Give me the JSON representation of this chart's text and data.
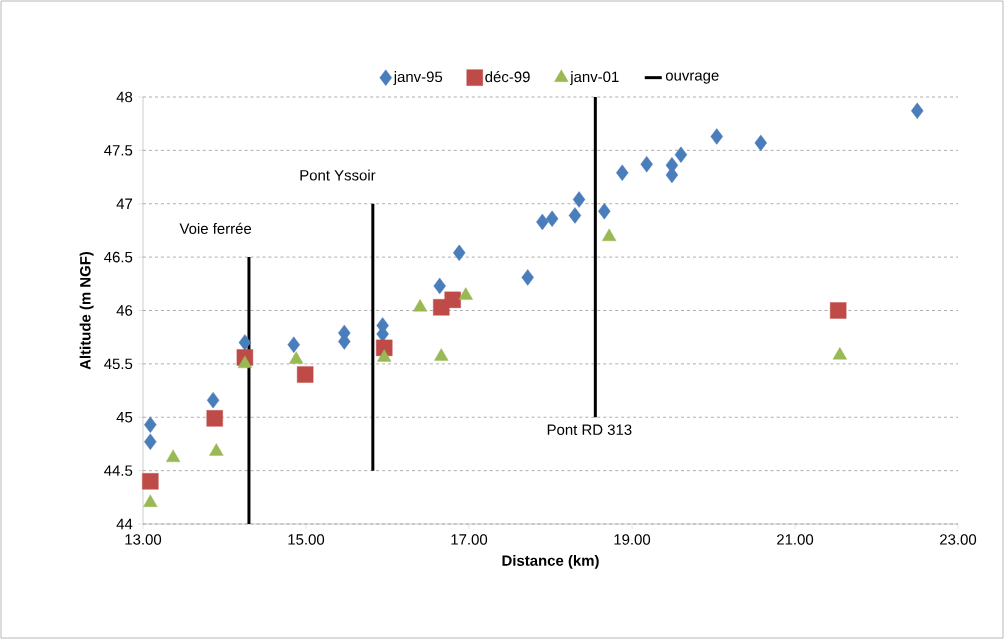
{
  "chart_data": {
    "type": "scatter",
    "xlabel": "Distance (km)",
    "ylabel": "Altitude (m NGF)",
    "xlim": [
      13,
      23
    ],
    "xticks": [
      {
        "value": 13,
        "label": "13.00"
      },
      {
        "value": 15,
        "label": "15.00"
      },
      {
        "value": 17,
        "label": "17.00"
      },
      {
        "value": 19,
        "label": "19.00"
      },
      {
        "value": 21,
        "label": "21.00"
      },
      {
        "value": 23,
        "label": "23.00"
      }
    ],
    "ylim": [
      44,
      48
    ],
    "yticks": [
      44,
      44.5,
      45,
      45.5,
      46,
      46.5,
      47,
      47.5,
      48
    ],
    "grid": "y",
    "legend": "top",
    "series": [
      {
        "name": "janv-95",
        "color": "#4a7ebb",
        "marker": "diamond",
        "x": [
          13.09,
          13.09,
          13.86,
          14.25,
          14.85,
          15.47,
          15.47,
          15.94,
          15.94,
          16.64,
          16.88,
          17.72,
          17.9,
          18.02,
          18.3,
          18.35,
          18.66,
          18.88,
          19.18,
          19.49,
          19.49,
          19.6,
          20.04,
          20.58,
          22.5
        ],
        "values": [
          44.93,
          44.77,
          45.16,
          45.7,
          45.68,
          45.79,
          45.71,
          45.86,
          45.78,
          46.23,
          46.54,
          46.31,
          46.83,
          46.86,
          46.89,
          47.04,
          46.93,
          47.29,
          47.37,
          47.27,
          47.36,
          47.46,
          47.63,
          47.57,
          47.87
        ]
      },
      {
        "name": "déc-99",
        "color": "#be4b48",
        "marker": "square",
        "x": [
          13.09,
          13.88,
          14.25,
          14.99,
          15.96,
          16.66,
          16.8,
          21.53
        ],
        "values": [
          44.4,
          44.99,
          45.56,
          45.4,
          45.65,
          46.03,
          46.1,
          46.0
        ]
      },
      {
        "name": "janv-01",
        "color": "#98b954",
        "marker": "triangle",
        "x": [
          13.09,
          13.37,
          13.9,
          14.25,
          14.88,
          15.96,
          16.4,
          16.66,
          16.96,
          18.72,
          21.55
        ],
        "values": [
          44.2,
          44.62,
          44.68,
          45.5,
          45.54,
          45.56,
          46.03,
          45.57,
          46.14,
          46.69,
          45.58
        ]
      },
      {
        "name": "ouvrage",
        "type": "line",
        "color": "#000000",
        "marker": "none",
        "x": [
          14.3,
          14.3,
          null,
          15.82,
          15.82,
          null,
          18.55,
          18.55
        ],
        "values": [
          44,
          46.5,
          null,
          44.5,
          47,
          null,
          45,
          48
        ]
      }
    ],
    "annotations": [
      {
        "text": "Voie ferrée",
        "x": 14.3,
        "y": 46.5
      },
      {
        "text": "Pont Yssoir",
        "x": 15.82,
        "y": 47
      },
      {
        "text": "Pont RD 313",
        "x": 18.55,
        "y": 45
      }
    ]
  }
}
